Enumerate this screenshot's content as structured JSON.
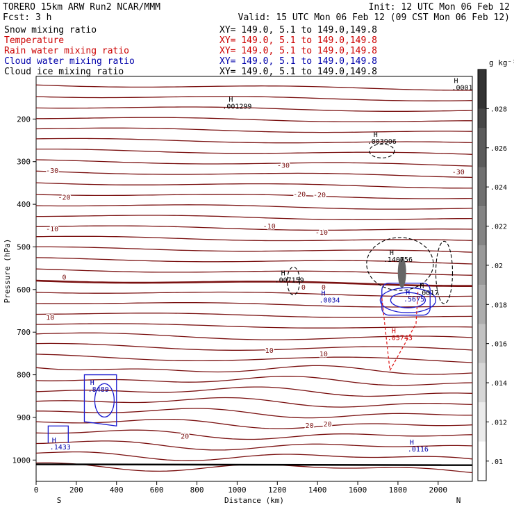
{
  "header": {
    "model": "TORERO  15km ARW   Run2    NCAR/MMM",
    "init": "Init: 12 UTC Mon 06 Feb 12",
    "forecast": "Fcst:    3 h",
    "valid": "Valid: 15 UTC Mon 06 Feb 12 (09 CST Mon 06 Feb 12)"
  },
  "legend": [
    {
      "name": "Snow mixing ratio",
      "xy": "XY= 149.0,  5.1 to 149.0,149.8",
      "color": "#000000"
    },
    {
      "name": "Temperature",
      "xy": "XY= 149.0,  5.1 to 149.0,149.8",
      "color": "#cc0000"
    },
    {
      "name": "Rain water mixing ratio",
      "xy": "XY= 149.0,  5.1 to 149.0,149.8",
      "color": "#cc0000"
    },
    {
      "name": "Cloud water mixing ratio",
      "xy": "XY= 149.0,  5.1 to 149.0,149.8",
      "color": "#0000aa"
    },
    {
      "name": "Cloud ice mixing ratio",
      "xy": "XY= 149.0,  5.1 to 149.0,149.8",
      "color": "#000000"
    }
  ],
  "chart_data": {
    "type": "cross-section",
    "xlabel": "Distance (km)",
    "ylabel": "Pressure (hPa)",
    "xlim": [
      0,
      2170
    ],
    "ylim": [
      1050,
      100
    ],
    "x_ticks": [
      "0",
      "200",
      "400",
      "600",
      "800",
      "1000",
      "1200",
      "1400",
      "1600",
      "1800",
      "2000"
    ],
    "y_ticks": [
      "200",
      "300",
      "400",
      "500",
      "600",
      "700",
      "800",
      "900",
      "1000"
    ],
    "x_end_labels": {
      "left": "S",
      "right": "N"
    },
    "colorbar": {
      "unit": "g kg⁻¹",
      "ticks": [
        ".01",
        ".012",
        ".014",
        ".016",
        ".018",
        ".02",
        ".022",
        ".024",
        ".026",
        ".028"
      ]
    },
    "temperature_labels": [
      {
        "text": "-30",
        "x": 80,
        "p": 320
      },
      {
        "text": "-30",
        "x": 1230,
        "p": 308
      },
      {
        "text": "-30",
        "x": 2100,
        "p": 323
      },
      {
        "text": "-20",
        "x": 140,
        "p": 383
      },
      {
        "text": "-20",
        "x": 1310,
        "p": 375
      },
      {
        "text": "-20",
        "x": 1410,
        "p": 377
      },
      {
        "text": "-10",
        "x": 80,
        "p": 457
      },
      {
        "text": "-10",
        "x": 1160,
        "p": 450
      },
      {
        "text": "-10",
        "x": 1420,
        "p": 465
      },
      {
        "text": "0",
        "x": 140,
        "p": 570
      },
      {
        "text": "0",
        "x": 1330,
        "p": 594
      },
      {
        "text": "0",
        "x": 1430,
        "p": 594
      },
      {
        "text": "10",
        "x": 70,
        "p": 665
      },
      {
        "text": "10",
        "x": 1160,
        "p": 742
      },
      {
        "text": "10",
        "x": 1430,
        "p": 750
      },
      {
        "text": "20",
        "x": 740,
        "p": 943
      },
      {
        "text": "20",
        "x": 1360,
        "p": 918
      },
      {
        "text": "20",
        "x": 1450,
        "p": 915
      }
    ],
    "maxima": [
      {
        "text": ".001299",
        "x": 1000,
        "p": 176,
        "color": "#000000"
      },
      {
        "text": ".003906",
        "x": 1720,
        "p": 258,
        "color": "#000000"
      },
      {
        "text": ".140756",
        "x": 1800,
        "p": 535,
        "color": "#000000"
      },
      {
        "text": ".007159",
        "x": 1260,
        "p": 583,
        "color": "#000000"
      },
      {
        "text": ".0034",
        "x": 1460,
        "p": 630,
        "color": "#0000aa"
      },
      {
        "text": ".5675",
        "x": 1880,
        "p": 628,
        "color": "#0000aa"
      },
      {
        "text": ".0017",
        "x": 1950,
        "p": 613,
        "color": "#000000"
      },
      {
        "text": ".05743",
        "x": 1810,
        "p": 718,
        "color": "#cc0000"
      },
      {
        "text": ".8489",
        "x": 310,
        "p": 840,
        "color": "#0000aa"
      },
      {
        "text": ".1433",
        "x": 120,
        "p": 975,
        "color": "#0000aa"
      },
      {
        "text": ".0116",
        "x": 1900,
        "p": 980,
        "color": "#0000aa"
      },
      {
        "text": ".0001",
        "x": 2120,
        "p": 132,
        "color": "#000000"
      }
    ]
  }
}
